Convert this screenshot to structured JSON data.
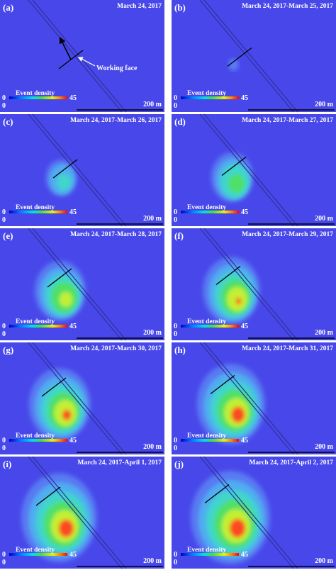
{
  "panels": [
    {
      "label": "(a)",
      "date": "March 24, 2017"
    },
    {
      "label": "(b)",
      "date": "March 24, 2017-March 25, 2017"
    },
    {
      "label": "(c)",
      "date": "March 24, 2017-March 26, 2017"
    },
    {
      "label": "(d)",
      "date": "March 24, 2017-March 27, 2017"
    },
    {
      "label": "(e)",
      "date": "March 24, 2017-March 28, 2017"
    },
    {
      "label": "(f)",
      "date": "March 24, 2017-March 29, 2017"
    },
    {
      "label": "(g)",
      "date": "March 24, 2017-March 30, 2017"
    },
    {
      "label": "(h)",
      "date": "March 24, 2017-March 31, 2017"
    },
    {
      "label": "(i)",
      "date": "March 24, 2017-April 1, 2017"
    },
    {
      "label": "(j)",
      "date": "March 24, 2017-April 2, 2017"
    }
  ],
  "annotation": "Working face",
  "legend": {
    "title": "Event density",
    "min": "0",
    "max": "45",
    "base": "0",
    "scale": "200 m"
  }
}
